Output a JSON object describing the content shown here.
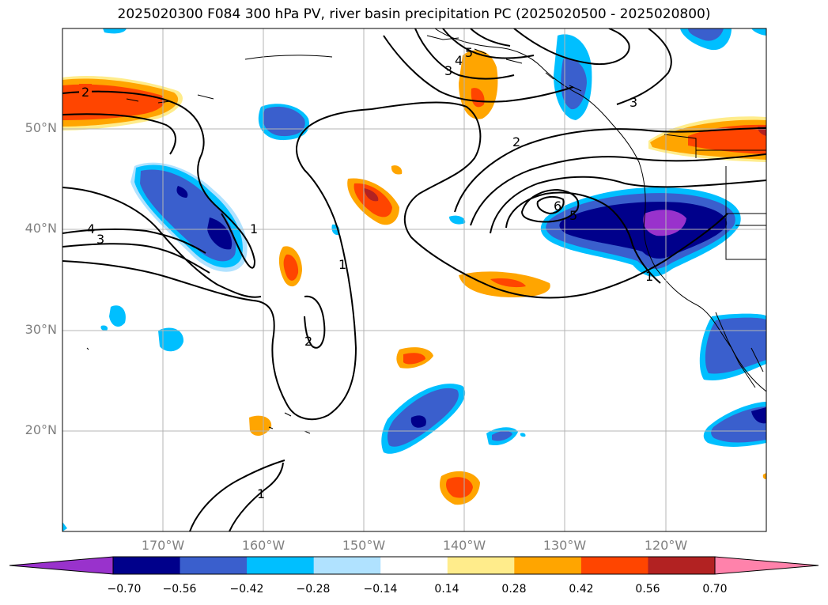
{
  "title": "2025020300 F084 300 hPa PV, river basin precipitation PC (2025020500 - 2025020800)",
  "lat_labels": [
    "50°N",
    "40°N",
    "30°N",
    "20°N"
  ],
  "lon_labels": [
    "170°W",
    "160°W",
    "150°W",
    "140°W",
    "130°W",
    "120°W"
  ],
  "colorbar": {
    "colors": [
      "#9932cc",
      "#00008b",
      "#3a5fcd",
      "#00bfff",
      "#b0e2ff",
      "#ffffff",
      "#ffec8b",
      "#ffa500",
      "#ff4500",
      "#b22222",
      "#ff82ab"
    ],
    "tick_labels": [
      "−0.70",
      "−0.56",
      "−0.42",
      "−0.28",
      "−0.14",
      "0.14",
      "0.28",
      "0.42",
      "0.56",
      "0.70"
    ]
  },
  "contour_labels": [
    "2",
    "4",
    "3",
    "1",
    "1",
    "2",
    "3",
    "4",
    "5",
    "3",
    "2",
    "6",
    "5",
    "1",
    "1"
  ],
  "map_extent": {
    "lon_min": -180,
    "lon_max": -110,
    "lat_min": 10,
    "lat_max": 60
  }
}
